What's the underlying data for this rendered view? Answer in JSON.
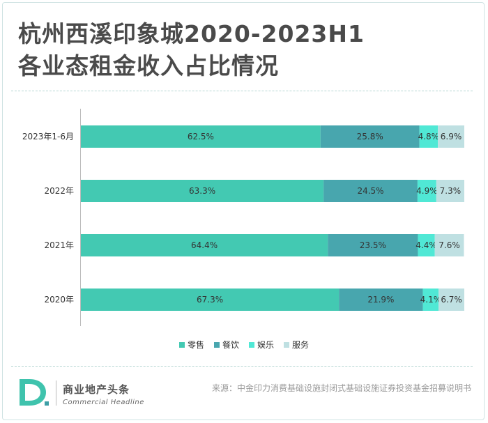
{
  "header": {
    "title_line1": "杭州西溪印象城2020-2023H1",
    "title_line2": "各业态租金收入占比情况"
  },
  "chart_data": {
    "type": "bar",
    "orientation": "horizontal",
    "stacked": true,
    "title": "杭州西溪印象城2020-2023H1各业态租金收入占比情况",
    "categories": [
      "2023年1-6月",
      "2022年",
      "2021年",
      "2020年"
    ],
    "series": [
      {
        "name": "零售",
        "values": [
          62.5,
          63.3,
          64.4,
          67.3
        ],
        "color": "#43c9b2"
      },
      {
        "name": "餐饮",
        "values": [
          25.8,
          24.5,
          23.5,
          21.9
        ],
        "color": "#48a6ae"
      },
      {
        "name": "娱乐",
        "values": [
          4.8,
          4.9,
          4.4,
          4.1
        ],
        "color": "#50e8d5"
      },
      {
        "name": "服务",
        "values": [
          6.9,
          7.3,
          7.6,
          6.7
        ],
        "color": "#bfe0e2"
      }
    ],
    "value_suffix": "%",
    "xlim": [
      0,
      100
    ],
    "legend_position": "bottom"
  },
  "footer": {
    "logo_name": "商业地产头条",
    "logo_sub": "Commercial Headline",
    "source": "来源：中金印力消费基础设施封闭式基础设施证券投资基金招募说明书"
  },
  "colors": {
    "title": "#4a4a4a",
    "logo_green": "#3fc3ad",
    "logo_teal": "#3e9fa6"
  }
}
